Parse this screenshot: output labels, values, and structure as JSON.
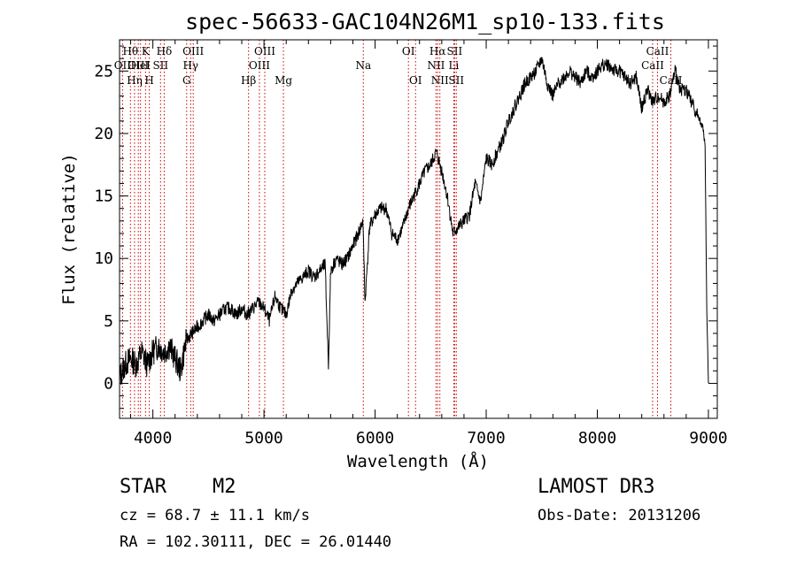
{
  "chart_data": {
    "type": "line",
    "title": "spec-56633-GAC104N26M1_sp10-133.fits",
    "xlabel": "Wavelength (Å)",
    "ylabel": "Flux (relative)",
    "xlim": [
      3700,
      9080
    ],
    "ylim": [
      -2.8,
      27.5
    ],
    "xticks": [
      4000,
      5000,
      6000,
      7000,
      8000,
      9000
    ],
    "yticks": [
      0,
      5,
      10,
      15,
      20,
      25
    ],
    "xtick_labels": [
      "4000",
      "5000",
      "6000",
      "7000",
      "8000",
      "9000"
    ],
    "ytick_labels": [
      "0",
      "5",
      "10",
      "15",
      "20",
      "25"
    ],
    "grid": false,
    "legend": "none",
    "series": [
      {
        "name": "spectrum",
        "x": [
          3700,
          3750,
          3800,
          3850,
          3900,
          3950,
          4000,
          4050,
          4100,
          4150,
          4200,
          4250,
          4300,
          4350,
          4400,
          4450,
          4500,
          4550,
          4600,
          4650,
          4700,
          4750,
          4800,
          4850,
          4900,
          4950,
          5000,
          5050,
          5100,
          5150,
          5200,
          5250,
          5300,
          5350,
          5400,
          5450,
          5500,
          5550,
          5580,
          5600,
          5650,
          5700,
          5750,
          5800,
          5850,
          5890,
          5910,
          5950,
          6000,
          6050,
          6100,
          6150,
          6200,
          6250,
          6300,
          6350,
          6400,
          6450,
          6500,
          6550,
          6600,
          6650,
          6700,
          6750,
          6800,
          6850,
          6900,
          6950,
          7000,
          7050,
          7100,
          7150,
          7200,
          7250,
          7300,
          7350,
          7400,
          7450,
          7500,
          7550,
          7600,
          7650,
          7700,
          7750,
          7800,
          7850,
          7900,
          7950,
          8000,
          8050,
          8100,
          8150,
          8200,
          8250,
          8300,
          8350,
          8400,
          8450,
          8500,
          8550,
          8600,
          8650,
          8700,
          8750,
          8800,
          8850,
          8900,
          8950,
          8970,
          8985,
          9000
        ],
        "y": [
          0.5,
          1.5,
          2.0,
          1.5,
          2.5,
          1.5,
          2.5,
          3.0,
          2.5,
          3.0,
          2.0,
          1.0,
          3.5,
          4.0,
          4.5,
          5.0,
          5.5,
          5.0,
          5.5,
          6.0,
          6.0,
          5.5,
          6.0,
          5.5,
          6.0,
          6.5,
          6.0,
          5.0,
          7.0,
          6.0,
          5.5,
          7.5,
          8.0,
          8.5,
          9.0,
          8.5,
          9.0,
          9.5,
          1.5,
          9.0,
          10.0,
          9.5,
          10.0,
          11.0,
          12.0,
          13.0,
          6.5,
          12.5,
          13.5,
          14.0,
          14.0,
          12.0,
          11.5,
          12.5,
          14.0,
          15.0,
          16.0,
          17.0,
          17.5,
          18.5,
          17.0,
          15.0,
          12.0,
          12.5,
          13.0,
          13.5,
          16.0,
          14.5,
          18.0,
          17.5,
          18.5,
          19.5,
          21.0,
          22.0,
          23.0,
          24.0,
          24.5,
          25.0,
          26.0,
          24.0,
          23.0,
          24.0,
          24.5,
          25.0,
          24.5,
          24.0,
          25.0,
          24.5,
          25.0,
          25.5,
          25.5,
          25.0,
          25.0,
          24.5,
          24.0,
          24.5,
          22.0,
          23.5,
          22.5,
          23.0,
          22.5,
          23.0,
          25.0,
          23.5,
          23.5,
          22.5,
          21.5,
          20.5,
          19.0,
          6.0,
          0.0
        ]
      }
    ],
    "lines": [
      {
        "x": 3727,
        "label": "OII",
        "row": 2
      },
      {
        "x": 3798,
        "label": "Hθ",
        "row": 1
      },
      {
        "x": 3835,
        "label": "Hη",
        "row": 3
      },
      {
        "x": 3869,
        "label": "OIII",
        "row": 2
      },
      {
        "x": 3889,
        "label": "HeI",
        "row": 2
      },
      {
        "x": 3934,
        "label": "K",
        "row": 1
      },
      {
        "x": 3968,
        "label": "H",
        "row": 3
      },
      {
        "x": 4069,
        "label": "SII",
        "row": 2
      },
      {
        "x": 4102,
        "label": "Hδ",
        "row": 1
      },
      {
        "x": 4304,
        "label": "G",
        "row": 3
      },
      {
        "x": 4340,
        "label": "Hγ",
        "row": 2
      },
      {
        "x": 4363,
        "label": "OIII",
        "row": 1
      },
      {
        "x": 4861,
        "label": "Hβ",
        "row": 3
      },
      {
        "x": 4959,
        "label": "OIII",
        "row": 2
      },
      {
        "x": 5007,
        "label": "OIII",
        "row": 1
      },
      {
        "x": 5175,
        "label": "Mg",
        "row": 3
      },
      {
        "x": 5894,
        "label": "Na",
        "row": 2
      },
      {
        "x": 6300,
        "label": "OI",
        "row": 1
      },
      {
        "x": 6364,
        "label": "OI",
        "row": 3
      },
      {
        "x": 6548,
        "label": "NII",
        "row": 2
      },
      {
        "x": 6563,
        "label": "Hα",
        "row": 1
      },
      {
        "x": 6583,
        "label": "NII",
        "row": 3
      },
      {
        "x": 6708,
        "label": "Li",
        "row": 2
      },
      {
        "x": 6716,
        "label": "SII",
        "row": 1
      },
      {
        "x": 6731,
        "label": "SII",
        "row": 3
      },
      {
        "x": 8498,
        "label": "CaII",
        "row": 2
      },
      {
        "x": 8542,
        "label": "CaII",
        "row": 1
      },
      {
        "x": 8662,
        "label": "CaII",
        "row": 3
      }
    ],
    "line_color": "#cc0000",
    "spectrum_color": "#000000"
  },
  "info": {
    "object_class": "STAR",
    "subclass": "M2",
    "survey": "LAMOST DR3",
    "redshift": "cz = 68.7 ± 11.1 km/s",
    "obs_date": "Obs-Date: 20131206",
    "coords": "RA = 102.30111, DEC =  26.01440"
  }
}
